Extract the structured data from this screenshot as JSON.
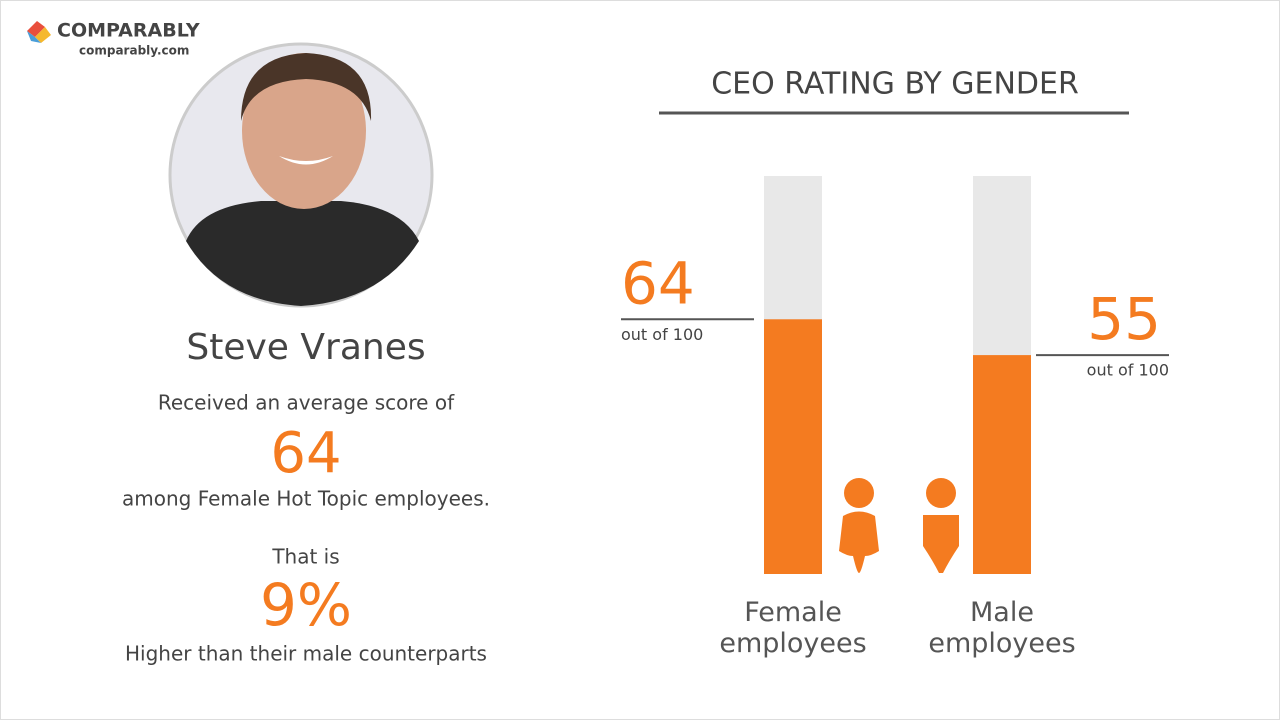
{
  "brand": {
    "name": "COMPARABLY",
    "url": "comparably.com"
  },
  "profile": {
    "name": "Steve Vranes",
    "intro": "Received an average score of",
    "score": 64,
    "group": "among Female Hot Topic employees.",
    "lead": "That is",
    "difference": "9%",
    "comparison": "Higher than their male counterparts"
  },
  "chart_data": {
    "type": "bar",
    "title": "CEO RATING BY GENDER",
    "categories": [
      "Female employees",
      "Male employees"
    ],
    "values": [
      64,
      55
    ],
    "value_note": "out of 100",
    "color": "#f47b20",
    "track_color": "#e8e8e8",
    "ylim": [
      0,
      100
    ]
  }
}
